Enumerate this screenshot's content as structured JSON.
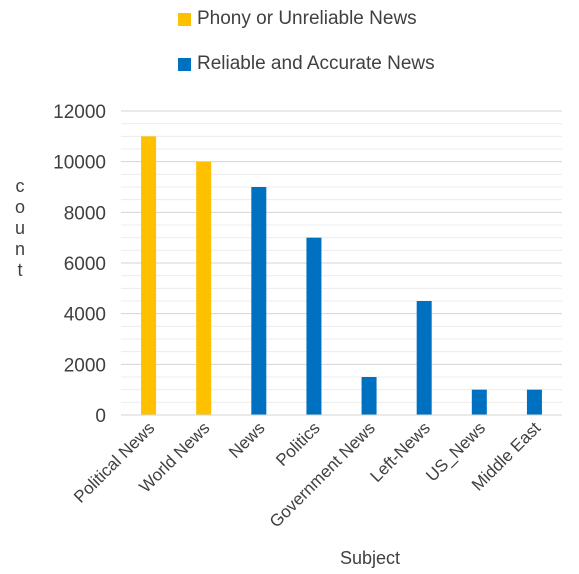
{
  "chart_data": {
    "type": "bar",
    "categories": [
      "Political News",
      "World News",
      "News",
      "Politics",
      "Government News",
      "Left-News",
      "US_News",
      "Middle East"
    ],
    "values": [
      11000,
      10000,
      9000,
      7000,
      1500,
      4500,
      1000,
      1000
    ],
    "category_series": [
      0,
      0,
      1,
      1,
      1,
      1,
      1,
      1
    ],
    "series": [
      {
        "name": "Phony or Unreliable News",
        "color": "#FFC000"
      },
      {
        "name": "Reliable and Accurate News",
        "color": "#0070C0"
      }
    ],
    "title": "",
    "xlabel": "Subject",
    "ylabel": "count",
    "ylim": [
      0,
      12000
    ],
    "yticks": [
      0,
      2000,
      4000,
      6000,
      8000,
      10000,
      12000
    ],
    "grid": true,
    "legend_position": "top"
  }
}
